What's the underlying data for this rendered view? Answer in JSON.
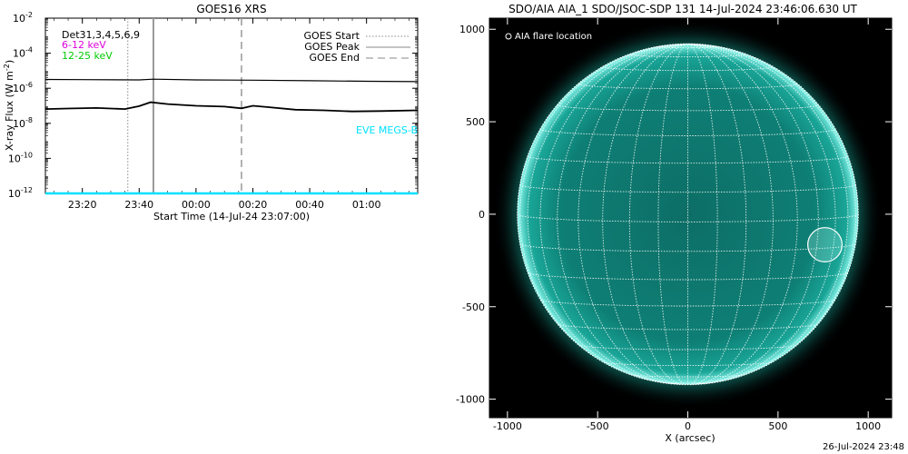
{
  "chart_data": [
    {
      "type": "line",
      "title": "GOES16 XRS",
      "xlabel": "Start Time (14-Jul-24 23:07:00)",
      "ylabel": "X-ray Flux (W m",
      "ylabel_exp": "-2",
      "ylabel_close": ")",
      "x_range": [
        "23:07",
        "01:18"
      ],
      "x_ticks": [
        "23:20",
        "23:40",
        "00:00",
        "00:20",
        "00:40",
        "01:00"
      ],
      "y_scale": "log",
      "ylim": [
        1e-12,
        0.01
      ],
      "y_tick_exponents": [
        "-12",
        "-10",
        "-8",
        "-6",
        "-4",
        "-2"
      ],
      "y_tick_base": "10",
      "legend_top_left": [
        {
          "text": "Det31,3,4,5,6,9",
          "color": "#000000"
        },
        {
          "text": "6-12 keV",
          "color": "#dd00dd"
        },
        {
          "text": "12-25 keV",
          "color": "#00cc00"
        }
      ],
      "legend_top_right": [
        {
          "text": "GOES Start",
          "style": "dotted"
        },
        {
          "text": "GOES Peak",
          "style": "solid"
        },
        {
          "text": "GOES End",
          "style": "dashed"
        }
      ],
      "annotation": {
        "text": "EVE MEGS-B",
        "color": "#00e0ff"
      },
      "event_lines": {
        "start": "23:36",
        "peak": "23:45",
        "end": "00:16"
      },
      "series": [
        {
          "band": "long",
          "color": "#000000",
          "x": [
            "23:07",
            "23:20",
            "23:40",
            "23:45",
            "00:00",
            "00:20",
            "00:40",
            "01:00",
            "01:18"
          ],
          "y": [
            3.2e-06,
            3.1e-06,
            3e-06,
            3.3e-06,
            3e-06,
            2.9e-06,
            2.7e-06,
            2.5e-06,
            2.4e-06
          ]
        },
        {
          "band": "short",
          "color": "#000000",
          "x": [
            "23:07",
            "23:15",
            "23:25",
            "23:35",
            "23:40",
            "23:44",
            "23:50",
            "00:00",
            "00:10",
            "00:16",
            "00:20",
            "00:25",
            "00:35",
            "00:45",
            "00:55",
            "01:05",
            "01:18"
          ],
          "y": [
            6.5e-08,
            7e-08,
            7.5e-08,
            6.5e-08,
            9.5e-08,
            1.6e-07,
            1.25e-07,
            1e-07,
            9e-08,
            7.2e-08,
            1e-07,
            8.5e-08,
            6e-08,
            5.5e-08,
            4.8e-08,
            5e-08,
            5.5e-08
          ]
        },
        {
          "band": "EVE MEGS-B baseline",
          "color": "#00e0ff",
          "x": [
            "23:07",
            "01:18"
          ],
          "y": [
            1e-12,
            1e-12
          ]
        }
      ]
    },
    {
      "type": "image",
      "title": "SDO/AIA AIA_1 SDO/JSOC-SDP 131 14-Jul-2024 23:46:06.630 UT",
      "xlabel": "X (arcsec)",
      "x_range": [
        -1100,
        1130
      ],
      "y_range": [
        -1100,
        1060
      ],
      "x_ticks": [
        "-1000",
        "-500",
        "0",
        "500",
        "1000"
      ],
      "y_ticks": [
        "1000",
        "500",
        "0",
        "-500",
        "-1000"
      ],
      "legend": "AIA flare location",
      "sun_radius_arcsec": 945,
      "flare_location": {
        "x": 760,
        "y": -165,
        "radius": 95
      },
      "colors": {
        "background": "#000000",
        "disk": "#0a8a7e",
        "limb": "#7fffff",
        "grid": "#ffffff"
      }
    }
  ],
  "footer_timestamp": "26-Jul-2024 23:48"
}
